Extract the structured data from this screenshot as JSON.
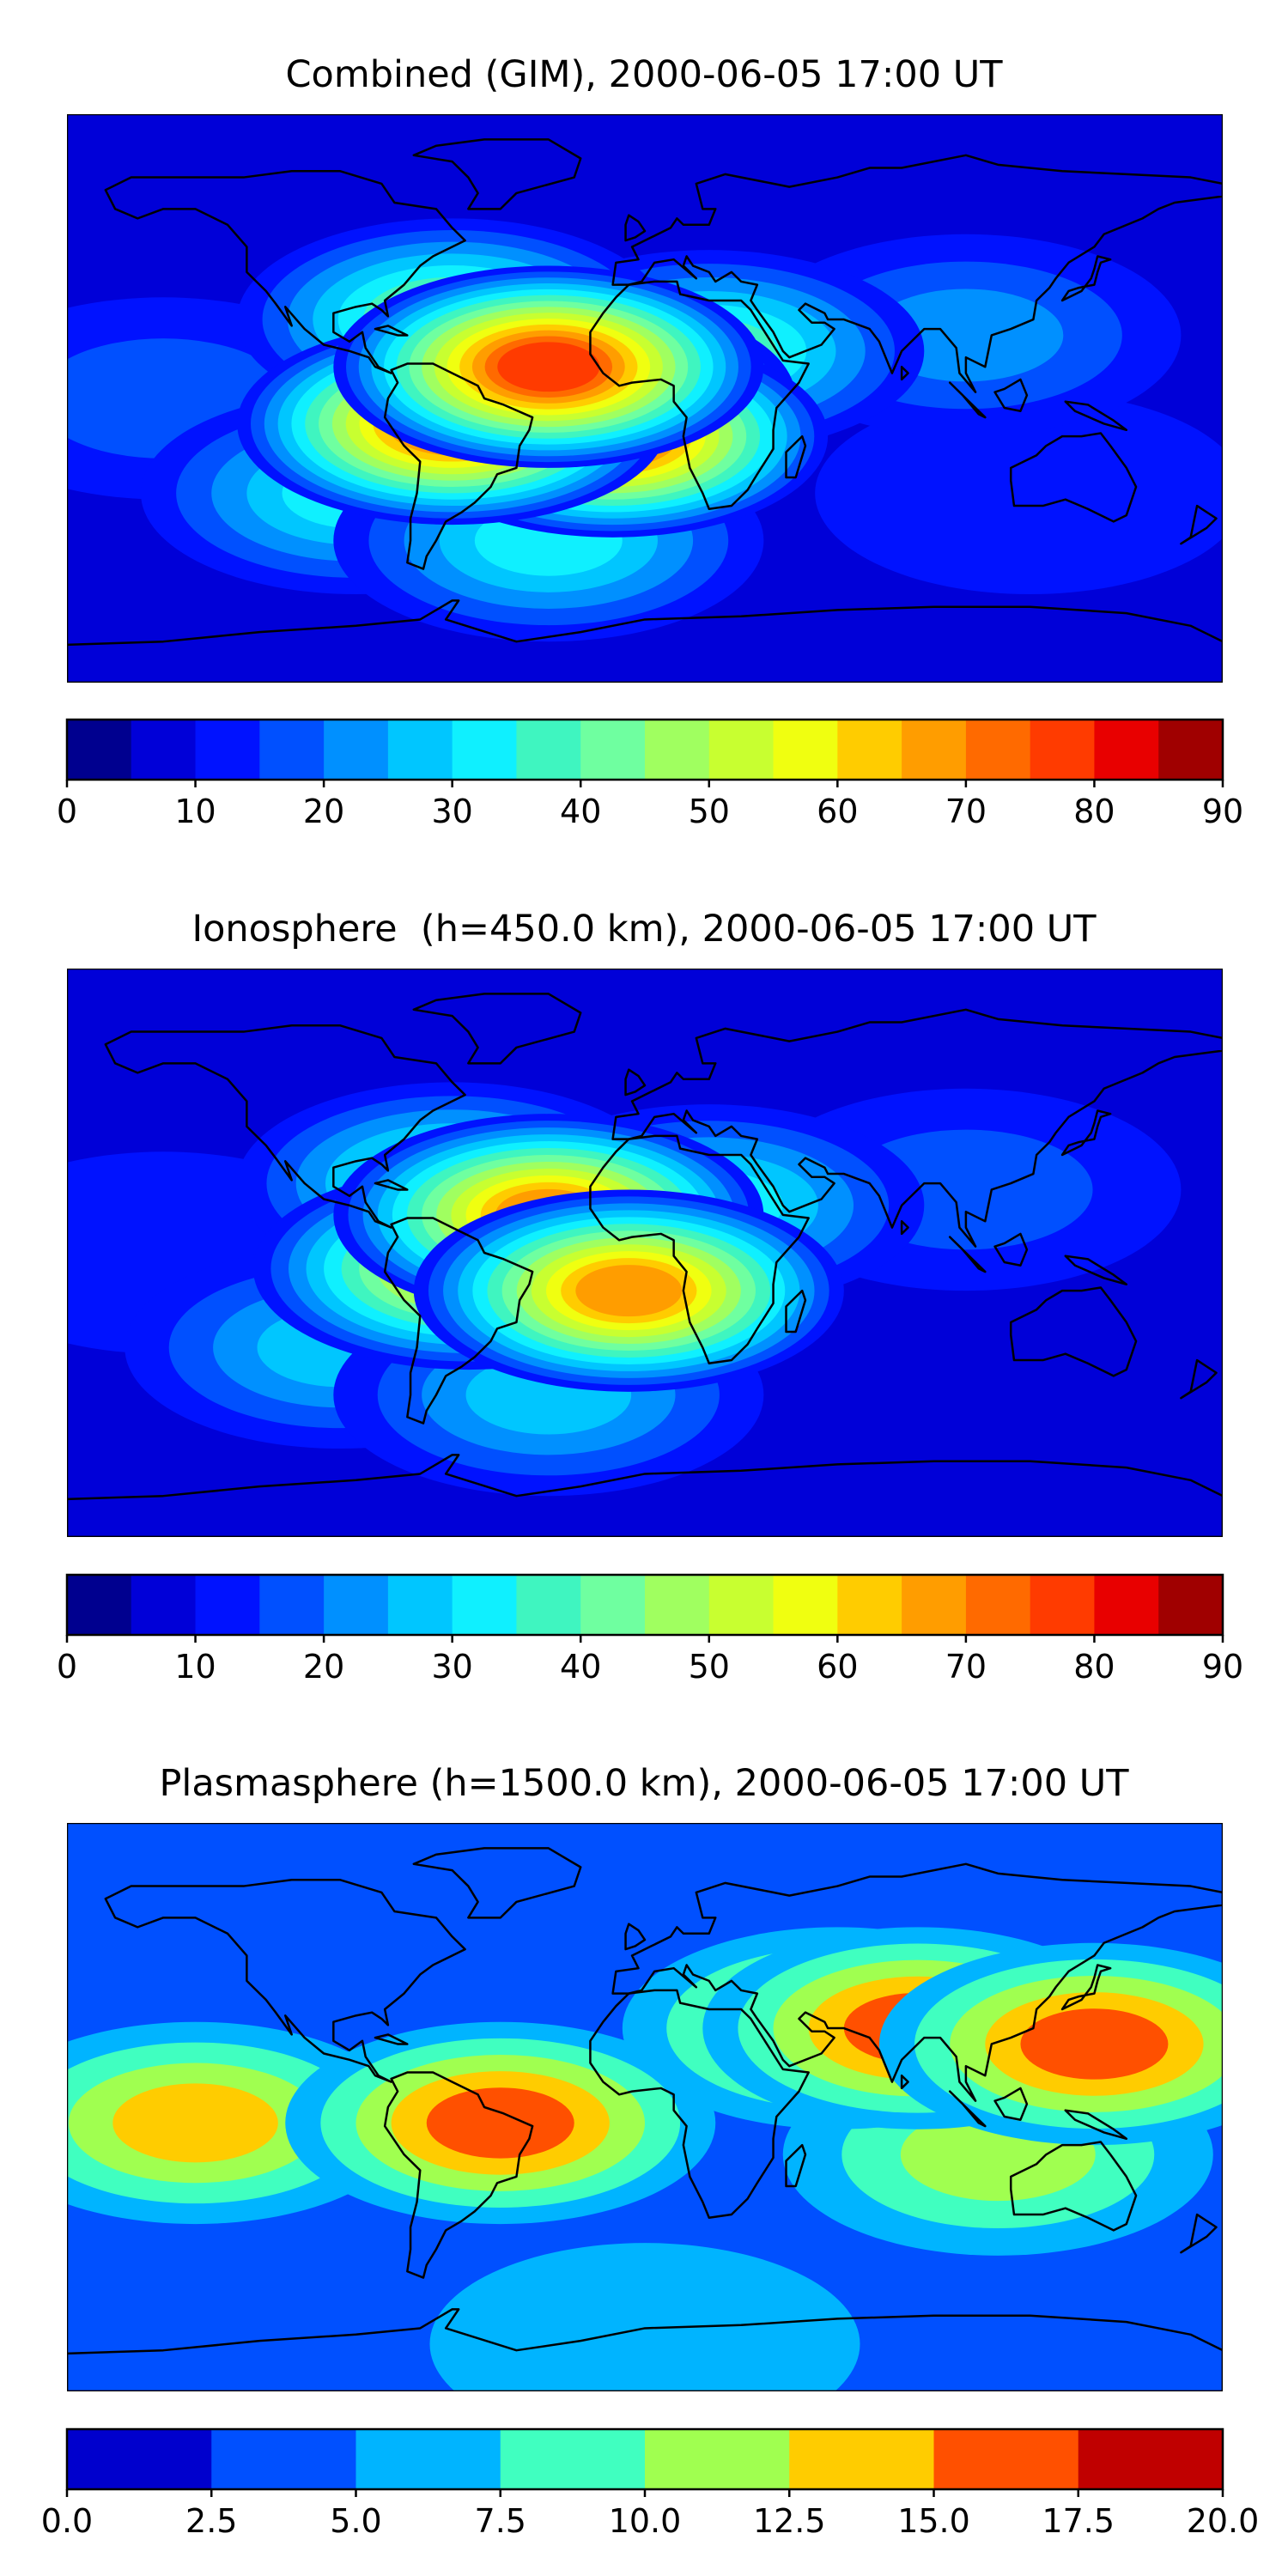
{
  "panels": [
    {
      "title": "Combined (GIM), 2000-06-05 17:00 UT",
      "colorbar": {
        "range": [
          0,
          90
        ],
        "levels": [
          0,
          5,
          10,
          15,
          20,
          25,
          30,
          35,
          40,
          45,
          50,
          55,
          60,
          65,
          70,
          75,
          80,
          85,
          90
        ],
        "tick_values": [
          0,
          10,
          20,
          30,
          40,
          50,
          60,
          70,
          80,
          90
        ],
        "tick_labels": [
          "0",
          "10",
          "20",
          "30",
          "40",
          "50",
          "60",
          "70",
          "80",
          "90"
        ],
        "colors": [
          "#00008f",
          "#0000d8",
          "#0012ff",
          "#0050ff",
          "#0090ff",
          "#00c6ff",
          "#0ff0ff",
          "#3ff5c0",
          "#6fffa0",
          "#a0ff60",
          "#c8ff30",
          "#f0ff10",
          "#ffcc00",
          "#ff9d00",
          "#ff6a00",
          "#ff3b00",
          "#e80000",
          "#a00000"
        ]
      },
      "map_blobs": [
        {
          "lon": -30,
          "lat": 10,
          "value": 78
        },
        {
          "lon": -60,
          "lat": -8,
          "value": 72
        },
        {
          "lon": -10,
          "lat": -12,
          "value": 70
        },
        {
          "lon": -20,
          "lat": 0,
          "value": 58
        },
        {
          "lon": -60,
          "lat": 25,
          "value": 40
        },
        {
          "lon": 20,
          "lat": 15,
          "value": 35
        },
        {
          "lon": -90,
          "lat": -30,
          "value": 30
        },
        {
          "lon": -30,
          "lat": -45,
          "value": 32
        },
        {
          "lon": 100,
          "lat": 20,
          "value": 20
        },
        {
          "lon": -150,
          "lat": 0,
          "value": 18
        },
        {
          "lon": 120,
          "lat": -30,
          "value": 10
        }
      ]
    },
    {
      "title": "Ionosphere  (h=450.0 km), 2000-06-05 17:00 UT",
      "colorbar": {
        "range": [
          0,
          90
        ],
        "levels": [
          0,
          5,
          10,
          15,
          20,
          25,
          30,
          35,
          40,
          45,
          50,
          55,
          60,
          65,
          70,
          75,
          80,
          85,
          90
        ],
        "tick_values": [
          0,
          10,
          20,
          30,
          40,
          50,
          60,
          70,
          80,
          90
        ],
        "tick_labels": [
          "0",
          "10",
          "20",
          "30",
          "40",
          "50",
          "60",
          "70",
          "80",
          "90"
        ],
        "colors": [
          "#00008f",
          "#0000d8",
          "#0012ff",
          "#0050ff",
          "#0090ff",
          "#00c6ff",
          "#0ff0ff",
          "#3ff5c0",
          "#6fffa0",
          "#a0ff60",
          "#c8ff30",
          "#f0ff10",
          "#ffcc00",
          "#ff9d00",
          "#ff6a00",
          "#ff3b00",
          "#e80000",
          "#a00000"
        ]
      },
      "map_blobs": [
        {
          "lon": -30,
          "lat": 12,
          "value": 66
        },
        {
          "lon": -5,
          "lat": -12,
          "value": 68
        },
        {
          "lon": -55,
          "lat": -5,
          "value": 58
        },
        {
          "lon": -60,
          "lat": 22,
          "value": 38
        },
        {
          "lon": 20,
          "lat": 15,
          "value": 30
        },
        {
          "lon": -95,
          "lat": -30,
          "value": 26
        },
        {
          "lon": -30,
          "lat": -45,
          "value": 28
        },
        {
          "lon": 100,
          "lat": 20,
          "value": 16
        },
        {
          "lon": -150,
          "lat": 0,
          "value": 14
        },
        {
          "lon": 120,
          "lat": -30,
          "value": 8
        }
      ]
    },
    {
      "title": "Plasmasphere (h=1500.0 km), 2000-06-05 17:00 UT",
      "colorbar": {
        "range": [
          0.0,
          20.0
        ],
        "levels": [
          0.0,
          2.5,
          5.0,
          7.5,
          10.0,
          12.5,
          15.0,
          17.5,
          20.0
        ],
        "tick_values": [
          0.0,
          2.5,
          5.0,
          7.5,
          10.0,
          12.5,
          15.0,
          17.5,
          20.0
        ],
        "tick_labels": [
          "0.0",
          "2.5",
          "5.0",
          "7.5",
          "10.0",
          "12.5",
          "15.0",
          "17.5",
          "20.0"
        ],
        "colors": [
          "#0000cd",
          "#0050ff",
          "#00b4ff",
          "#40ffc0",
          "#a0ff50",
          "#ffcc00",
          "#ff5000",
          "#c00000"
        ]
      },
      "map_blobs": [
        {
          "lon": 85,
          "lat": 25,
          "value": 15.5
        },
        {
          "lon": 140,
          "lat": 20,
          "value": 16
        },
        {
          "lon": -45,
          "lat": -5,
          "value": 15.5
        },
        {
          "lon": -140,
          "lat": -5,
          "value": 13.5
        },
        {
          "lon": 60,
          "lat": 25,
          "value": 13
        },
        {
          "lon": 110,
          "lat": -15,
          "value": 11
        },
        {
          "lon": -100,
          "lat": 20,
          "value": 2.5
        },
        {
          "lon": -20,
          "lat": -5,
          "value": 4
        },
        {
          "lon": -80,
          "lat": 40,
          "value": 4
        },
        {
          "lon": 0,
          "lat": -75,
          "value": 7
        },
        {
          "lon": 0,
          "lat": -55,
          "value": 2
        }
      ]
    }
  ],
  "chart_data": [
    {
      "type": "heatmap",
      "title": "Combined (GIM), 2000-06-05 17:00 UT",
      "colorbar_range": [
        0,
        90
      ],
      "colorbar_ticks": [
        0,
        10,
        20,
        30,
        40,
        50,
        60,
        70,
        80,
        90
      ],
      "note_values": "max ~80 over equatorial Atlantic / South America"
    },
    {
      "type": "heatmap",
      "title": "Ionosphere  (h=450.0 km), 2000-06-05 17:00 UT",
      "colorbar_range": [
        0,
        90
      ],
      "colorbar_ticks": [
        0,
        10,
        20,
        30,
        40,
        50,
        60,
        70,
        80,
        90
      ]
    },
    {
      "type": "heatmap",
      "title": "Plasmasphere (h=1500.0 km), 2000-06-05 17:00 UT",
      "colorbar_range": [
        0.0,
        20.0
      ],
      "colorbar_ticks": [
        0.0,
        2.5,
        5.0,
        7.5,
        10.0,
        12.5,
        15.0,
        17.5,
        20.0
      ]
    }
  ]
}
